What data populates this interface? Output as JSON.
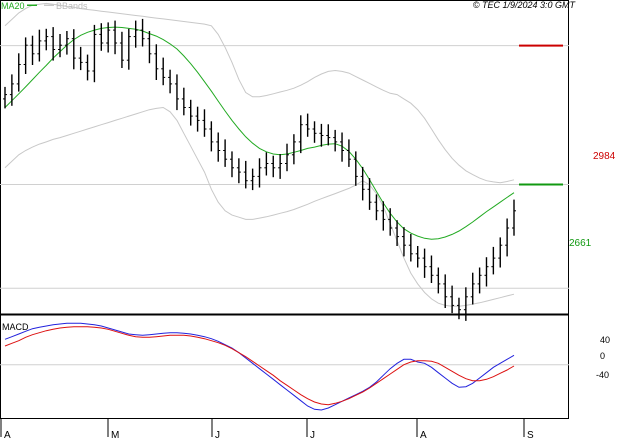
{
  "header": {
    "legend_ma": "MA20",
    "legend_bb": "BBands",
    "watermark": "© TEC 1/9/2024 3:0 GMT"
  },
  "colors": {
    "price": "#000000",
    "ma20": "#22aa22",
    "bbands": "#c8c8c8",
    "resistance": "#cc0000",
    "support": "#119911",
    "macd": "#2222dd",
    "signal": "#dd1111"
  },
  "chart_data": [
    {
      "type": "ohlc",
      "name": "price",
      "x_months": [
        "A",
        "M",
        "J",
        "J",
        "A",
        "S"
      ],
      "y_range": [
        2360,
        3090
      ],
      "levels": [
        {
          "label": "2984",
          "value": 2984,
          "color": "resistance"
        },
        {
          "label": "2661",
          "value": 2661,
          "color": "support"
        }
      ],
      "ma20": [
        2840,
        2856,
        2872,
        2888,
        2905,
        2922,
        2938,
        2955,
        2970,
        2985,
        2998,
        3008,
        3015,
        3020,
        3024,
        3026,
        3027,
        3026,
        3024,
        3022,
        3018,
        3012,
        3006,
        2998,
        2988,
        2976,
        2960,
        2942,
        2922,
        2900,
        2878,
        2855,
        2832,
        2810,
        2790,
        2772,
        2757,
        2745,
        2737,
        2732,
        2730,
        2732,
        2736,
        2740,
        2745,
        2748,
        2752,
        2755,
        2756,
        2750,
        2738,
        2720,
        2698,
        2672,
        2645,
        2618,
        2594,
        2574,
        2558,
        2548,
        2541,
        2536,
        2534,
        2535,
        2539,
        2545,
        2553,
        2563,
        2574,
        2586,
        2598,
        2609,
        2620,
        2631,
        2642
      ],
      "bb_upper": [
        3030,
        3045,
        3060,
        3070,
        3078,
        3080,
        3082,
        3080,
        3078,
        3075,
        3073,
        3070,
        3068,
        3066,
        3064,
        3062,
        3060,
        3058,
        3056,
        3054,
        3052,
        3050,
        3048,
        3046,
        3044,
        3042,
        3040,
        3038,
        3036,
        3034,
        3030,
        3010,
        2980,
        2945,
        2905,
        2875,
        2865,
        2865,
        2868,
        2872,
        2876,
        2880,
        2885,
        2892,
        2900,
        2910,
        2918,
        2924,
        2926,
        2924,
        2920,
        2912,
        2904,
        2896,
        2888,
        2880,
        2873,
        2870,
        2860,
        2850,
        2835,
        2815,
        2790,
        2765,
        2742,
        2722,
        2706,
        2693,
        2684,
        2676,
        2670,
        2667,
        2665,
        2668,
        2672
      ],
      "bb_lower": [
        2700,
        2715,
        2730,
        2740,
        2748,
        2755,
        2760,
        2766,
        2770,
        2775,
        2780,
        2785,
        2790,
        2795,
        2800,
        2805,
        2810,
        2815,
        2820,
        2825,
        2830,
        2835,
        2838,
        2840,
        2830,
        2810,
        2780,
        2750,
        2720,
        2690,
        2650,
        2620,
        2600,
        2590,
        2585,
        2580,
        2580,
        2583,
        2586,
        2590,
        2594,
        2598,
        2603,
        2609,
        2615,
        2622,
        2628,
        2634,
        2640,
        2646,
        2652,
        2660,
        2670,
        2660,
        2640,
        2610,
        2570,
        2530,
        2490,
        2455,
        2430,
        2410,
        2395,
        2385,
        2380,
        2378,
        2378,
        2380,
        2383,
        2386,
        2390,
        2394,
        2398,
        2402,
        2406
      ],
      "closes": [
        2870,
        2895,
        2940,
        2985,
        2965,
        2995,
        3005,
        2975,
        2985,
        3000,
        2955,
        2945,
        2925,
        3010,
        2990,
        3020,
        2990,
        2950,
        3005,
        3020,
        3000,
        2965,
        2930,
        2910,
        2895,
        2860,
        2840,
        2820,
        2810,
        2790,
        2760,
        2740,
        2720,
        2700,
        2690,
        2670,
        2680,
        2700,
        2710,
        2700,
        2710,
        2730,
        2760,
        2800,
        2790,
        2780,
        2775,
        2770,
        2760,
        2740,
        2720,
        2680,
        2650,
        2620,
        2600,
        2580,
        2560,
        2540,
        2520,
        2500,
        2490,
        2470,
        2450,
        2430,
        2400,
        2380,
        2370,
        2400,
        2430,
        2450,
        2470,
        2490,
        2520,
        2560,
        2600
      ]
    },
    {
      "type": "line",
      "name": "MACD",
      "ticks": [
        "40",
        "0",
        "-40"
      ],
      "tick_values": [
        40,
        0,
        -40
      ],
      "y_range": [
        -80,
        70
      ],
      "macd": [
        38,
        42,
        46,
        50,
        54,
        56,
        58,
        60,
        61,
        62,
        62,
        62,
        61,
        60,
        58,
        55,
        52,
        49,
        46,
        45,
        44,
        45,
        46,
        47,
        48,
        48,
        47,
        46,
        44,
        42,
        39,
        35,
        30,
        25,
        18,
        10,
        2,
        -6,
        -14,
        -22,
        -30,
        -38,
        -46,
        -54,
        -62,
        -67,
        -68,
        -65,
        -60,
        -55,
        -50,
        -45,
        -40,
        -34,
        -26,
        -16,
        -6,
        2,
        8,
        8,
        4,
        2,
        -4,
        -12,
        -20,
        -28,
        -34,
        -33,
        -28,
        -20,
        -12,
        -4,
        2,
        8,
        14
      ],
      "signal": [
        28,
        32,
        36,
        41,
        45,
        48,
        51,
        53,
        55,
        56,
        57,
        57,
        57,
        56,
        55,
        53,
        50,
        47,
        44,
        42,
        41,
        41,
        42,
        43,
        44,
        44,
        44,
        43,
        41,
        39,
        36,
        33,
        29,
        24,
        18,
        12,
        5,
        -2,
        -9,
        -16,
        -24,
        -31,
        -38,
        -45,
        -51,
        -56,
        -59,
        -60,
        -58,
        -55,
        -51,
        -46,
        -41,
        -35,
        -28,
        -21,
        -14,
        -7,
        0,
        4,
        6,
        6,
        5,
        2,
        -4,
        -10,
        -16,
        -21,
        -24,
        -24,
        -22,
        -18,
        -13,
        -8,
        -2
      ]
    }
  ]
}
